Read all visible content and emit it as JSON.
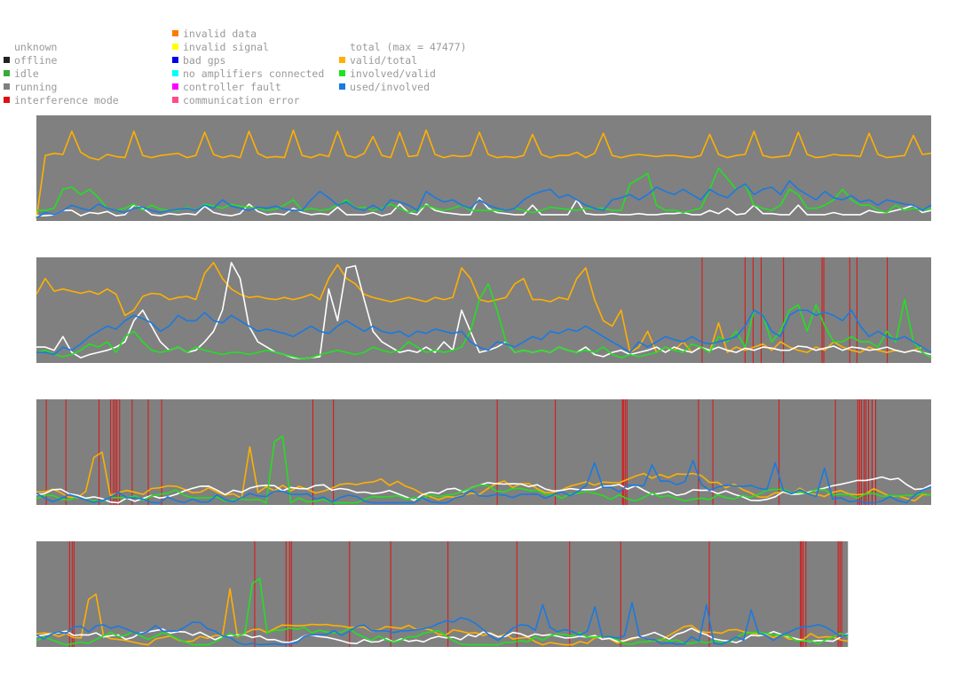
{
  "legend": {
    "groups": [
      {
        "items": [
          {
            "label": "unknown",
            "color": null
          },
          {
            "label": "offline",
            "color": "#222222"
          },
          {
            "label": "idle",
            "color": "#3aa83a"
          },
          {
            "label": "running",
            "color": "#808080"
          },
          {
            "label": "interference mode",
            "color": "#e01010"
          }
        ]
      },
      {
        "items": [
          {
            "label": "invalid data",
            "color": "#ff7a00"
          },
          {
            "label": "invalid signal",
            "color": "#ffff00"
          },
          {
            "label": "bad gps",
            "color": "#0000ee"
          },
          {
            "label": "no amplifiers connected",
            "color": "#00ffff"
          },
          {
            "label": "controller fault",
            "color": "#ff00ff"
          },
          {
            "label": "communication error",
            "color": "#ff4a8a"
          }
        ]
      },
      {
        "items": [
          {
            "label": "total (max = 47477)",
            "color": null
          },
          {
            "label": "valid/total",
            "color": "#ffb000"
          },
          {
            "label": "involved/valid",
            "color": "#22e022"
          },
          {
            "label": "used/involved",
            "color": "#1a7ae0"
          }
        ]
      }
    ]
  },
  "chart_data": [
    {
      "type": "line",
      "panel": 1,
      "x_extent": 1.0,
      "ylim": [
        0,
        1
      ],
      "interference_marks": [],
      "series": [
        {
          "name": "valid/total",
          "color": "#ffb000",
          "values": [
            0.02,
            0.62,
            0.64,
            0.63,
            0.85,
            0.65,
            0.6,
            0.58,
            0.63,
            0.61,
            0.6,
            0.85,
            0.62,
            0.6,
            0.62,
            0.63,
            0.64,
            0.6,
            0.62,
            0.84,
            0.63,
            0.6,
            0.62,
            0.6,
            0.85,
            0.64,
            0.6,
            0.61,
            0.6,
            0.86,
            0.62,
            0.6,
            0.63,
            0.61,
            0.85,
            0.62,
            0.6,
            0.64,
            0.8,
            0.62,
            0.6,
            0.84,
            0.61,
            0.62,
            0.86,
            0.63,
            0.6,
            0.62,
            0.61,
            0.62,
            0.84,
            0.63,
            0.6,
            0.61,
            0.6,
            0.62,
            0.82,
            0.63,
            0.6,
            0.62,
            0.62,
            0.65,
            0.6,
            0.64,
            0.83,
            0.62,
            0.6,
            0.62,
            0.63,
            0.62,
            0.61,
            0.62,
            0.62,
            0.61,
            0.6,
            0.62,
            0.82,
            0.63,
            0.6,
            0.62,
            0.63,
            0.85,
            0.62,
            0.6,
            0.61,
            0.62,
            0.84,
            0.63,
            0.6,
            0.61,
            0.63,
            0.62,
            0.62,
            0.61,
            0.83,
            0.63,
            0.6,
            0.61,
            0.62,
            0.81,
            0.63,
            0.64
          ]
        },
        {
          "name": "total",
          "color": "#ffffff",
          "values": [
            0.05,
            0.05,
            0.06,
            0.1,
            0.1,
            0.05,
            0.08,
            0.07,
            0.09,
            0.05,
            0.06,
            0.15,
            0.12,
            0.06,
            0.05,
            0.07,
            0.06,
            0.07,
            0.06,
            0.14,
            0.08,
            0.06,
            0.05,
            0.07,
            0.16,
            0.09,
            0.06,
            0.07,
            0.06,
            0.12,
            0.08,
            0.06,
            0.07,
            0.06,
            0.13,
            0.06,
            0.06,
            0.06,
            0.08,
            0.05,
            0.07,
            0.16,
            0.08,
            0.06,
            0.16,
            0.1,
            0.08,
            0.07,
            0.06,
            0.06,
            0.22,
            0.12,
            0.08,
            0.07,
            0.06,
            0.06,
            0.15,
            0.06,
            0.06,
            0.06,
            0.06,
            0.2,
            0.07,
            0.06,
            0.06,
            0.07,
            0.06,
            0.06,
            0.07,
            0.06,
            0.06,
            0.07,
            0.07,
            0.08,
            0.06,
            0.06,
            0.1,
            0.07,
            0.12,
            0.06,
            0.07,
            0.15,
            0.07,
            0.07,
            0.06,
            0.06,
            0.15,
            0.06,
            0.06,
            0.06,
            0.08,
            0.06,
            0.06,
            0.06,
            0.1,
            0.08,
            0.08,
            0.1,
            0.12,
            0.15,
            0.08,
            0.1
          ]
        },
        {
          "name": "involved/valid",
          "color": "#22e022",
          "values": [
            0.1,
            0.1,
            0.12,
            0.3,
            0.32,
            0.25,
            0.3,
            0.22,
            0.12,
            0.1,
            0.12,
            0.16,
            0.1,
            0.15,
            0.11,
            0.1,
            0.1,
            0.13,
            0.1,
            0.16,
            0.14,
            0.12,
            0.16,
            0.14,
            0.13,
            0.12,
            0.1,
            0.11,
            0.15,
            0.2,
            0.1,
            0.12,
            0.1,
            0.11,
            0.15,
            0.2,
            0.12,
            0.13,
            0.1,
            0.12,
            0.16,
            0.12,
            0.08,
            0.1,
            0.15,
            0.12,
            0.1,
            0.12,
            0.15,
            0.1,
            0.1,
            0.1,
            0.1,
            0.1,
            0.12,
            0.1,
            0.08,
            0.1,
            0.13,
            0.12,
            0.11,
            0.1,
            0.12,
            0.12,
            0.12,
            0.1,
            0.1,
            0.35,
            0.4,
            0.45,
            0.15,
            0.1,
            0.1,
            0.08,
            0.1,
            0.12,
            0.3,
            0.5,
            0.4,
            0.3,
            0.35,
            0.15,
            0.12,
            0.1,
            0.15,
            0.3,
            0.25,
            0.12,
            0.12,
            0.15,
            0.2,
            0.3,
            0.2,
            0.15,
            0.15,
            0.1,
            0.08,
            0.15,
            0.1,
            0.12,
            0.1,
            0.12
          ]
        },
        {
          "name": "used/involved",
          "color": "#1a7ae0",
          "values": [
            0.03,
            0.08,
            0.06,
            0.1,
            0.15,
            0.12,
            0.1,
            0.16,
            0.12,
            0.1,
            0.08,
            0.12,
            0.13,
            0.1,
            0.08,
            0.1,
            0.11,
            0.12,
            0.1,
            0.15,
            0.12,
            0.2,
            0.14,
            0.12,
            0.1,
            0.13,
            0.12,
            0.14,
            0.11,
            0.1,
            0.1,
            0.2,
            0.28,
            0.22,
            0.15,
            0.18,
            0.12,
            0.1,
            0.15,
            0.1,
            0.2,
            0.18,
            0.15,
            0.1,
            0.28,
            0.22,
            0.18,
            0.2,
            0.15,
            0.12,
            0.2,
            0.15,
            0.12,
            0.1,
            0.12,
            0.2,
            0.25,
            0.28,
            0.3,
            0.22,
            0.25,
            0.2,
            0.15,
            0.12,
            0.1,
            0.2,
            0.22,
            0.25,
            0.2,
            0.25,
            0.32,
            0.28,
            0.25,
            0.3,
            0.25,
            0.2,
            0.3,
            0.25,
            0.22,
            0.3,
            0.35,
            0.25,
            0.3,
            0.32,
            0.25,
            0.38,
            0.3,
            0.25,
            0.2,
            0.28,
            0.22,
            0.2,
            0.24,
            0.18,
            0.2,
            0.15,
            0.2,
            0.18,
            0.16,
            0.15,
            0.1,
            0.15
          ]
        }
      ]
    },
    {
      "type": "line",
      "panel": 2,
      "x_extent": 1.0,
      "ylim": [
        0,
        1
      ],
      "interference_marks": [
        0.744,
        0.792,
        0.801,
        0.81,
        0.835,
        0.878,
        0.88,
        0.909,
        0.917,
        0.951
      ],
      "series": [
        {
          "name": "valid/total",
          "color": "#ffb000",
          "values": [
            0.65,
            0.8,
            0.68,
            0.7,
            0.68,
            0.66,
            0.68,
            0.65,
            0.7,
            0.65,
            0.45,
            0.5,
            0.63,
            0.66,
            0.65,
            0.6,
            0.62,
            0.63,
            0.6,
            0.85,
            0.95,
            0.8,
            0.7,
            0.65,
            0.62,
            0.63,
            0.61,
            0.6,
            0.62,
            0.6,
            0.62,
            0.65,
            0.6,
            0.8,
            0.93,
            0.8,
            0.75,
            0.65,
            0.62,
            0.6,
            0.58,
            0.6,
            0.62,
            0.6,
            0.58,
            0.62,
            0.6,
            0.62,
            0.9,
            0.8,
            0.6,
            0.58,
            0.6,
            0.62,
            0.75,
            0.8,
            0.6,
            0.6,
            0.58,
            0.62,
            0.6,
            0.8,
            0.9,
            0.6,
            0.4,
            0.35,
            0.5,
            0.1,
            0.15,
            0.3,
            0.1,
            0.15,
            0.12,
            0.2,
            0.1,
            0.15,
            0.1,
            0.38,
            0.1,
            0.15,
            0.12,
            0.15,
            0.18,
            0.12,
            0.2,
            0.15,
            0.12,
            0.1,
            0.15,
            0.12,
            0.2,
            0.15,
            0.12,
            0.1,
            0.15,
            0.12,
            0.1,
            0.12,
            0.1,
            0.12,
            0.15,
            0.1
          ]
        },
        {
          "name": "total",
          "color": "#ffffff",
          "values": [
            0.15,
            0.15,
            0.12,
            0.25,
            0.1,
            0.05,
            0.08,
            0.1,
            0.12,
            0.15,
            0.2,
            0.4,
            0.5,
            0.35,
            0.2,
            0.12,
            0.15,
            0.1,
            0.12,
            0.2,
            0.3,
            0.5,
            0.95,
            0.8,
            0.35,
            0.2,
            0.15,
            0.1,
            0.08,
            0.05,
            0.04,
            0.05,
            0.06,
            0.7,
            0.4,
            0.9,
            0.92,
            0.6,
            0.3,
            0.2,
            0.15,
            0.1,
            0.12,
            0.1,
            0.15,
            0.1,
            0.2,
            0.12,
            0.5,
            0.3,
            0.1,
            0.12,
            0.15,
            0.2,
            0.1,
            0.12,
            0.1,
            0.12,
            0.1,
            0.15,
            0.12,
            0.1,
            0.15,
            0.08,
            0.06,
            0.1,
            0.12,
            0.08,
            0.1,
            0.12,
            0.15,
            0.1,
            0.15,
            0.12,
            0.1,
            0.15,
            0.12,
            0.15,
            0.12,
            0.1,
            0.14,
            0.12,
            0.15,
            0.14,
            0.12,
            0.12,
            0.16,
            0.15,
            0.12,
            0.14,
            0.16,
            0.12,
            0.15,
            0.14,
            0.12,
            0.13,
            0.15,
            0.12,
            0.1,
            0.12,
            0.1,
            0.08
          ]
        },
        {
          "name": "involved/valid",
          "color": "#22e022",
          "values": [
            0.1,
            0.12,
            0.08,
            0.06,
            0.08,
            0.12,
            0.18,
            0.15,
            0.2,
            0.1,
            0.25,
            0.3,
            0.2,
            0.12,
            0.1,
            0.12,
            0.15,
            0.1,
            0.15,
            0.12,
            0.1,
            0.08,
            0.1,
            0.1,
            0.08,
            0.1,
            0.12,
            0.1,
            0.08,
            0.06,
            0.04,
            0.05,
            0.08,
            0.1,
            0.12,
            0.1,
            0.08,
            0.1,
            0.15,
            0.12,
            0.1,
            0.12,
            0.2,
            0.15,
            0.1,
            0.12,
            0.1,
            0.12,
            0.15,
            0.3,
            0.6,
            0.75,
            0.5,
            0.2,
            0.1,
            0.12,
            0.1,
            0.12,
            0.1,
            0.15,
            0.12,
            0.1,
            0.12,
            0.1,
            0.15,
            0.08,
            0.05,
            0.08,
            0.06,
            0.08,
            0.1,
            0.15,
            0.12,
            0.1,
            0.18,
            0.15,
            0.1,
            0.25,
            0.2,
            0.3,
            0.15,
            0.5,
            0.45,
            0.2,
            0.3,
            0.5,
            0.55,
            0.3,
            0.55,
            0.35,
            0.2,
            0.2,
            0.25,
            0.2,
            0.2,
            0.15,
            0.3,
            0.2,
            0.6,
            0.2,
            0.1,
            0.05
          ]
        },
        {
          "name": "used/involved",
          "color": "#1a7ae0",
          "values": [
            0.1,
            0.1,
            0.08,
            0.15,
            0.12,
            0.18,
            0.25,
            0.3,
            0.35,
            0.32,
            0.4,
            0.45,
            0.42,
            0.38,
            0.3,
            0.35,
            0.45,
            0.4,
            0.4,
            0.48,
            0.4,
            0.38,
            0.45,
            0.4,
            0.35,
            0.3,
            0.32,
            0.3,
            0.28,
            0.25,
            0.3,
            0.35,
            0.3,
            0.28,
            0.35,
            0.4,
            0.35,
            0.3,
            0.35,
            0.3,
            0.28,
            0.3,
            0.25,
            0.3,
            0.28,
            0.32,
            0.3,
            0.28,
            0.3,
            0.2,
            0.15,
            0.12,
            0.2,
            0.18,
            0.15,
            0.2,
            0.25,
            0.22,
            0.3,
            0.28,
            0.32,
            0.3,
            0.35,
            0.3,
            0.25,
            0.2,
            0.15,
            0.1,
            0.2,
            0.15,
            0.2,
            0.25,
            0.22,
            0.2,
            0.25,
            0.2,
            0.18,
            0.2,
            0.22,
            0.25,
            0.35,
            0.5,
            0.45,
            0.3,
            0.25,
            0.45,
            0.5,
            0.5,
            0.45,
            0.48,
            0.45,
            0.4,
            0.5,
            0.35,
            0.25,
            0.3,
            0.25,
            0.22,
            0.25,
            0.2,
            0.15,
            0.1
          ]
        }
      ]
    },
    {
      "type": "line",
      "panel": 3,
      "x_extent": 1.0,
      "ylim": [
        0,
        1
      ],
      "interference_marks": [
        0.011,
        0.033,
        0.07,
        0.083,
        0.086,
        0.088,
        0.09,
        0.093,
        0.107,
        0.125,
        0.14,
        0.309,
        0.332,
        0.515,
        0.58,
        0.655,
        0.656,
        0.658,
        0.66,
        0.74,
        0.756,
        0.83,
        0.893,
        0.918,
        0.92,
        0.922,
        0.925,
        0.927,
        0.93,
        0.934,
        0.938
      ]
    },
    {
      "type": "line",
      "panel": 4,
      "x_extent": 0.907,
      "ylim": [
        0,
        1
      ],
      "interference_marks": [
        0.037,
        0.04,
        0.042,
        0.244,
        0.279,
        0.283,
        0.285,
        0.35,
        0.396,
        0.46,
        0.537,
        0.596,
        0.653,
        0.752,
        0.854,
        0.855,
        0.857,
        0.86,
        0.896,
        0.898,
        0.9
      ]
    }
  ]
}
